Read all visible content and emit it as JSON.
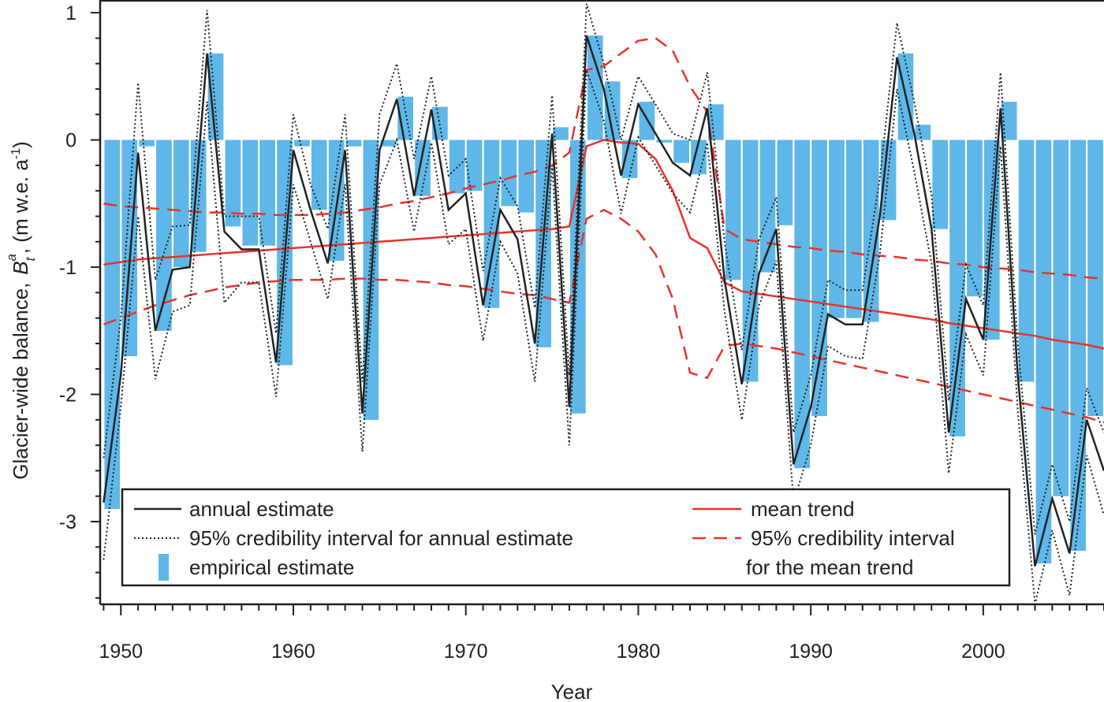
{
  "chart_data": {
    "type": "bar+line",
    "xlabel": "Year",
    "ylabel_main": "Glacier-wide balance,",
    "ylabel_symbol": "B",
    "ylabel_sub": "t",
    "ylabel_sup": "a",
    "ylabel_units_open": ", (m w.e. a",
    "ylabel_units_sup": "-1",
    "ylabel_units_close": ")",
    "xlim": [
      1948.8,
      2007
    ],
    "ylim": [
      -3.65,
      1.1
    ],
    "x_ticks": [
      1950,
      1960,
      1970,
      1980,
      1990,
      2000
    ],
    "x_tick_labels": [
      "1950",
      "1960",
      "1970",
      "1980",
      "1990",
      "2000"
    ],
    "y_ticks": [
      1,
      0,
      -1,
      -2,
      -3
    ],
    "y_tick_labels": [
      "1",
      "0",
      "-1",
      "-2",
      "-3"
    ],
    "years": [
      1949,
      1950,
      1951,
      1952,
      1953,
      1954,
      1955,
      1956,
      1957,
      1958,
      1959,
      1960,
      1961,
      1962,
      1963,
      1964,
      1965,
      1966,
      1967,
      1968,
      1969,
      1970,
      1971,
      1972,
      1973,
      1974,
      1975,
      1976,
      1977,
      1978,
      1979,
      1980,
      1981,
      1982,
      1983,
      1984,
      1985,
      1986,
      1987,
      1988,
      1989,
      1990,
      1991,
      1992,
      1993,
      1994,
      1995,
      1996,
      1997,
      1998,
      1999,
      2000,
      2001,
      2002,
      2003,
      2004,
      2005,
      2006,
      2007
    ],
    "series": [
      {
        "name": "empirical estimate",
        "kind": "bar",
        "color": "#5eb7e8",
        "values": [
          -2.9,
          -1.7,
          -0.05,
          -1.5,
          -1.0,
          -0.88,
          0.68,
          -0.68,
          -0.83,
          -0.83,
          -1.77,
          -0.05,
          -0.55,
          -0.95,
          -0.05,
          -2.2,
          -0.05,
          0.34,
          -0.44,
          0.26,
          -0.42,
          -0.4,
          -1.32,
          -0.52,
          -0.57,
          -1.63,
          0.1,
          -2.15,
          0.82,
          0.46,
          -0.3,
          0.3,
          -0.02,
          -0.18,
          -0.27,
          0.28,
          -1.1,
          -1.9,
          -1.04,
          -0.67,
          -2.58,
          -2.17,
          -1.4,
          -1.4,
          -1.43,
          -0.63,
          0.68,
          0.12,
          -0.7,
          -2.33,
          -1.23,
          -1.57,
          0.3,
          -1.9,
          -3.33,
          -2.8,
          -3.23,
          -2.17,
          null
        ]
      },
      {
        "name": "annual estimate",
        "kind": "line",
        "color": "#222222",
        "values": [
          -2.85,
          -1.85,
          -0.1,
          -1.5,
          -1.02,
          -1.0,
          0.68,
          -0.72,
          -0.86,
          -0.86,
          -1.75,
          -0.08,
          -0.55,
          -0.97,
          -0.08,
          -2.15,
          -0.08,
          0.32,
          -0.44,
          0.24,
          -0.55,
          -0.42,
          -1.3,
          -0.55,
          -0.78,
          -1.6,
          0.05,
          -2.1,
          0.82,
          0.4,
          -0.28,
          0.28,
          0.05,
          -0.18,
          -0.28,
          0.25,
          -1.1,
          -1.92,
          -1.05,
          -0.7,
          -2.55,
          -2.1,
          -1.37,
          -1.45,
          -1.45,
          -0.6,
          0.65,
          0.05,
          -0.7,
          -2.3,
          -1.25,
          -1.57,
          0.25,
          -1.85,
          -3.35,
          -2.82,
          -3.25,
          -2.2,
          -2.6
        ]
      },
      {
        "name": "95% credibility interval for annual estimate",
        "kind": "line",
        "style": "dotted",
        "color": "#222222",
        "upper": [
          -2.5,
          -1.4,
          0.45,
          -1.1,
          -0.68,
          -0.67,
          1.02,
          -0.6,
          -0.6,
          -0.6,
          -1.52,
          0.2,
          -0.35,
          -0.7,
          0.2,
          -1.9,
          0.2,
          0.6,
          -0.15,
          0.5,
          -0.28,
          -0.15,
          -1.03,
          -0.3,
          -0.52,
          -1.32,
          0.35,
          -1.85,
          1.07,
          0.6,
          0.0,
          0.5,
          0.28,
          0.05,
          0.0,
          0.53,
          -0.8,
          -1.65,
          -0.78,
          -0.45,
          -2.3,
          -1.85,
          -1.1,
          -1.18,
          -1.18,
          -0.3,
          0.92,
          0.3,
          -0.43,
          -2.05,
          -0.98,
          -1.3,
          0.53,
          -1.6,
          -3.1,
          -2.55,
          -3.0,
          -1.95,
          -2.3
        ],
        "lower": [
          -3.3,
          -2.1,
          -0.6,
          -1.88,
          -1.35,
          -1.3,
          0.3,
          -1.28,
          -1.12,
          -1.12,
          -2.02,
          -0.35,
          -0.8,
          -1.25,
          -0.35,
          -2.45,
          -0.35,
          0.0,
          -0.72,
          -0.02,
          -0.82,
          -0.7,
          -1.58,
          -0.8,
          -1.05,
          -1.9,
          -0.2,
          -2.4,
          0.55,
          0.15,
          -0.58,
          0.02,
          -0.2,
          -0.42,
          -0.57,
          -0.02,
          -1.35,
          -2.2,
          -1.3,
          -0.95,
          -2.85,
          -2.4,
          -1.62,
          -1.7,
          -1.72,
          -0.9,
          0.4,
          -0.25,
          -0.97,
          -2.62,
          -1.53,
          -1.85,
          -0.05,
          -2.12,
          -3.65,
          -3.07,
          -3.58,
          -2.48,
          -2.95
        ]
      },
      {
        "name": "mean trend",
        "kind": "line",
        "color": "#e8322b",
        "values": [
          -0.98,
          -0.96,
          -0.94,
          -0.93,
          -0.92,
          -0.91,
          -0.9,
          -0.89,
          -0.88,
          -0.87,
          -0.86,
          -0.85,
          -0.84,
          -0.83,
          -0.82,
          -0.81,
          -0.8,
          -0.79,
          -0.78,
          -0.77,
          -0.76,
          -0.75,
          -0.74,
          -0.73,
          -0.72,
          -0.71,
          -0.7,
          -0.68,
          -0.05,
          0.0,
          -0.02,
          -0.03,
          -0.15,
          -0.4,
          -0.77,
          -0.85,
          -1.12,
          -1.19,
          -1.21,
          -1.23,
          -1.25,
          -1.27,
          -1.29,
          -1.31,
          -1.33,
          -1.35,
          -1.37,
          -1.39,
          -1.41,
          -1.44,
          -1.46,
          -1.48,
          -1.5,
          -1.52,
          -1.54,
          -1.57,
          -1.59,
          -1.61,
          -1.64
        ]
      },
      {
        "name": "95% credibility interval for the mean trend",
        "kind": "line",
        "style": "dashed",
        "color": "#e8322b",
        "upper": [
          -0.5,
          -0.52,
          -0.53,
          -0.54,
          -0.55,
          -0.56,
          -0.57,
          -0.57,
          -0.58,
          -0.58,
          -0.59,
          -0.59,
          -0.59,
          -0.58,
          -0.57,
          -0.55,
          -0.53,
          -0.5,
          -0.48,
          -0.45,
          -0.42,
          -0.38,
          -0.35,
          -0.32,
          -0.28,
          -0.25,
          -0.2,
          -0.1,
          0.55,
          0.58,
          0.68,
          0.78,
          0.8,
          0.7,
          0.42,
          0.22,
          -0.7,
          -0.78,
          -0.8,
          -0.82,
          -0.84,
          -0.85,
          -0.87,
          -0.88,
          -0.9,
          -0.91,
          -0.92,
          -0.94,
          -0.95,
          -0.97,
          -0.98,
          -1.0,
          -1.01,
          -1.02,
          -1.04,
          -1.05,
          -1.06,
          -1.08,
          -1.09
        ],
        "lower": [
          -1.45,
          -1.4,
          -1.35,
          -1.3,
          -1.26,
          -1.22,
          -1.19,
          -1.16,
          -1.14,
          -1.12,
          -1.11,
          -1.1,
          -1.1,
          -1.1,
          -1.09,
          -1.09,
          -1.1,
          -1.1,
          -1.11,
          -1.12,
          -1.14,
          -1.15,
          -1.17,
          -1.19,
          -1.21,
          -1.22,
          -1.25,
          -1.28,
          -0.62,
          -0.55,
          -0.62,
          -0.72,
          -0.9,
          -1.25,
          -1.83,
          -1.87,
          -1.62,
          -1.6,
          -1.62,
          -1.64,
          -1.67,
          -1.7,
          -1.73,
          -1.76,
          -1.79,
          -1.82,
          -1.85,
          -1.88,
          -1.91,
          -1.94,
          -1.97,
          -2.0,
          -2.03,
          -2.06,
          -2.09,
          -2.12,
          -2.15,
          -2.18,
          -2.22
        ]
      }
    ],
    "legend": {
      "placement": "bottom",
      "entries": [
        {
          "label": "annual estimate",
          "kind": "solid-black"
        },
        {
          "label": "95% credibility interval for annual estimate",
          "kind": "dotted-black"
        },
        {
          "label": "empirical estimate",
          "kind": "bar-blue"
        },
        {
          "label": "mean trend",
          "kind": "solid-red"
        },
        {
          "label": "95% credibility interval",
          "kind": "dashed-red"
        },
        {
          "label": "for the mean trend",
          "kind": "none"
        }
      ]
    }
  }
}
